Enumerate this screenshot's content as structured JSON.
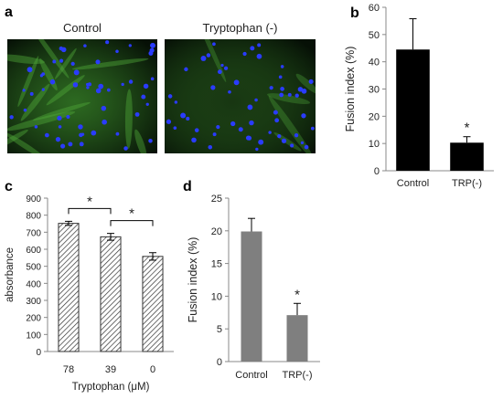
{
  "panels": {
    "a": {
      "letter": "a",
      "images": [
        {
          "title": "Control"
        },
        {
          "title": "Tryptophan (-)"
        }
      ]
    },
    "b": {
      "letter": "b"
    },
    "c": {
      "letter": "c"
    },
    "d": {
      "letter": "d"
    }
  },
  "colors": {
    "black_bar": "#000000",
    "grey_bar": "#7f7f7f",
    "hatch": "#333333",
    "nuclei": "#2a3cff",
    "cytoplasm": "#3a8a2a"
  },
  "chart_data": [
    {
      "panel": "b",
      "type": "bar",
      "categories": [
        "Control",
        "TRP(-)"
      ],
      "values": [
        44.5,
        10.3
      ],
      "errors": [
        11.3,
        2.2
      ],
      "significance": [
        "",
        "*"
      ],
      "ylabel": "Fusion index (%)",
      "xlabel": "",
      "ylim": [
        0,
        60
      ],
      "yticks": [
        "0",
        "10",
        "20",
        "30",
        "40",
        "50",
        "60"
      ],
      "bar_color": "#000000",
      "grid": false
    },
    {
      "panel": "c",
      "type": "bar",
      "categories": [
        "78",
        "39",
        "0"
      ],
      "values": [
        752,
        673,
        558
      ],
      "errors": [
        12,
        20,
        22
      ],
      "ylabel": "absorbance",
      "xlabel": "Tryptophan (μM)",
      "ylim": [
        0,
        900
      ],
      "yticks": [
        "0",
        "100",
        "200",
        "300",
        "400",
        "500",
        "600",
        "700",
        "800",
        "900"
      ],
      "fill": "hatched",
      "comparisons": [
        {
          "from": 0,
          "to": 1,
          "label": "*"
        },
        {
          "from": 1,
          "to": 2,
          "label": "*"
        }
      ],
      "grid": false
    },
    {
      "panel": "d",
      "type": "bar",
      "categories": [
        "Control",
        "TRP(-)"
      ],
      "values": [
        19.9,
        7.1
      ],
      "errors": [
        2.0,
        1.8
      ],
      "significance": [
        "",
        "*"
      ],
      "ylabel": "Fusion index (%)",
      "xlabel": "",
      "ylim": [
        0,
        25
      ],
      "yticks": [
        "0",
        "5",
        "10",
        "15",
        "20",
        "25"
      ],
      "bar_color": "#7f7f7f",
      "grid": false
    }
  ]
}
